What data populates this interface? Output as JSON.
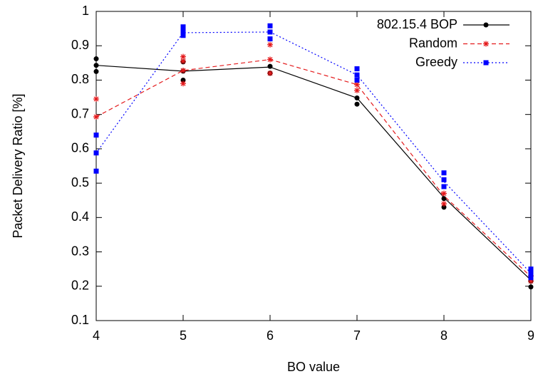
{
  "chart_data": {
    "type": "line",
    "x_label": "BO value",
    "y_label": "Packet Delivery Ratio [%]",
    "x": [
      4,
      5,
      6,
      7,
      8,
      9
    ],
    "xlim": [
      4,
      9
    ],
    "xticks": [
      4,
      5,
      6,
      7,
      8,
      9
    ],
    "ylim": [
      0.1,
      1
    ],
    "yticks": [
      0.1,
      0.2,
      0.3,
      0.4,
      0.5,
      0.6,
      0.7,
      0.8,
      0.9,
      1
    ],
    "legend": "top-right",
    "series": [
      {
        "name": "802.15.4 BOP",
        "color": "#000000",
        "marker": "circle",
        "dash": "solid",
        "values": [
          0.843,
          0.826,
          0.838,
          0.748,
          0.458,
          0.218
        ],
        "samples": {
          "x": [
            4,
            4,
            4,
            5,
            5,
            5,
            6,
            6,
            7,
            7,
            8,
            8,
            9,
            9
          ],
          "y": [
            0.862,
            0.843,
            0.825,
            0.853,
            0.826,
            0.8,
            0.84,
            0.82,
            0.748,
            0.73,
            0.455,
            0.43,
            0.215,
            0.198
          ]
        }
      },
      {
        "name": "Random",
        "color": "#e41a1c",
        "marker": "star",
        "dash": "dashed",
        "values": [
          0.693,
          0.828,
          0.86,
          0.787,
          0.463,
          0.228
        ],
        "samples": {
          "x": [
            4,
            4,
            5,
            5,
            5,
            5,
            6,
            6,
            6,
            7,
            7,
            8,
            8,
            9,
            9
          ],
          "y": [
            0.745,
            0.693,
            0.868,
            0.855,
            0.828,
            0.79,
            0.903,
            0.86,
            0.82,
            0.787,
            0.77,
            0.47,
            0.44,
            0.23,
            0.215
          ]
        }
      },
      {
        "name": "Greedy",
        "color": "#0000ff",
        "marker": "square",
        "dash": "dotted",
        "values": [
          0.588,
          0.938,
          0.94,
          0.815,
          0.505,
          0.238
        ],
        "samples": {
          "x": [
            4,
            4,
            4,
            5,
            5,
            5,
            5,
            6,
            6,
            6,
            7,
            7,
            7,
            8,
            8,
            8,
            9,
            9,
            9
          ],
          "y": [
            0.64,
            0.588,
            0.535,
            0.955,
            0.945,
            0.938,
            0.93,
            0.958,
            0.94,
            0.92,
            0.833,
            0.815,
            0.8,
            0.53,
            0.51,
            0.49,
            0.25,
            0.238,
            0.225
          ]
        }
      }
    ]
  }
}
